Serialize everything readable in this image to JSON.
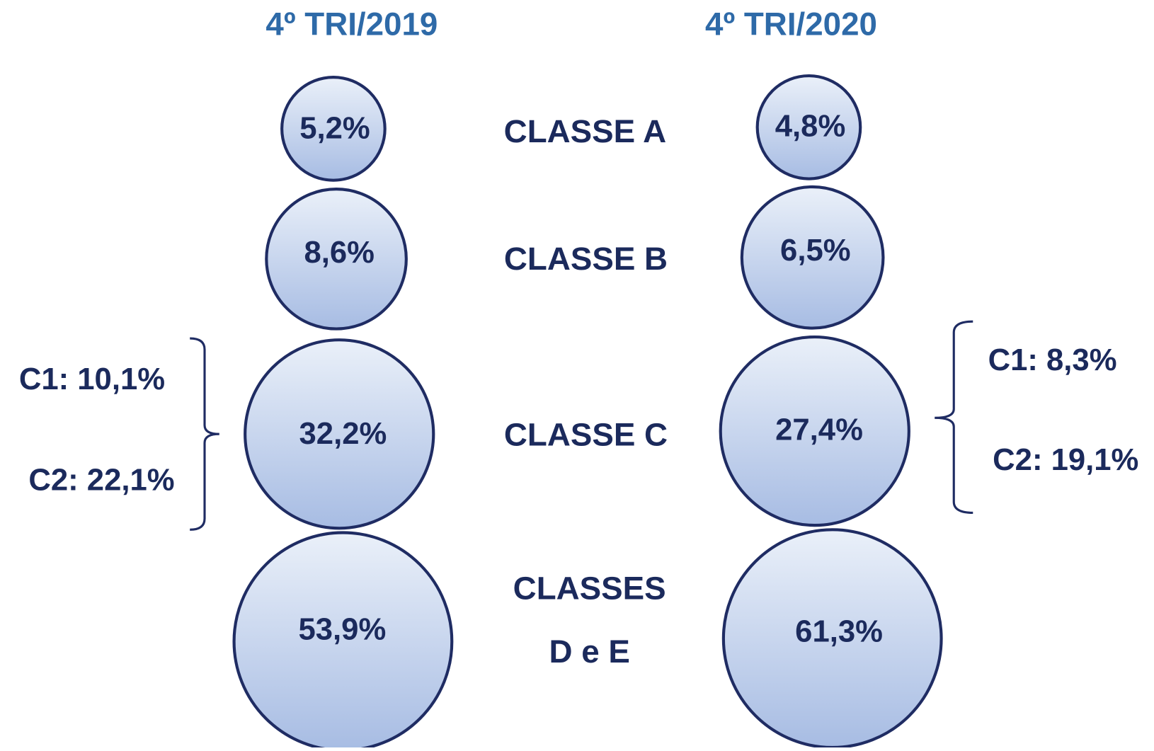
{
  "columns": [
    {
      "title": "4º TRI/2019",
      "values": [
        "5,2%",
        "8,6%",
        "32,2%",
        "53,9%"
      ],
      "sub": [
        "C1: 10,1%",
        "C2: 22,1%"
      ]
    },
    {
      "title": "4º TRI/2020",
      "values": [
        "4,8%",
        "6,5%",
        "27,4%",
        "61,3%"
      ],
      "sub": [
        "C1: 8,3%",
        "C2: 19,1%"
      ]
    }
  ],
  "classes": [
    "CLASSE A",
    "CLASSE B",
    "CLASSE C",
    "CLASSES",
    "D e E"
  ]
}
